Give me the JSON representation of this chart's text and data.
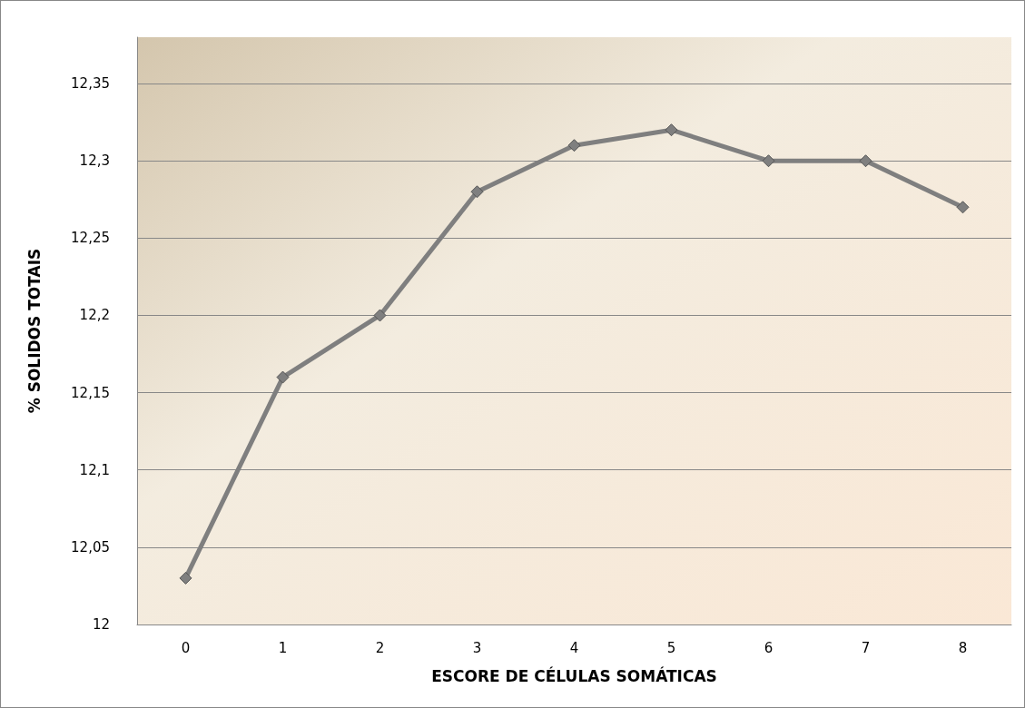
{
  "chart_data": {
    "type": "line",
    "xlabel": "ESCORE DE CÉLULAS SOMÁTICAS",
    "ylabel": "% SOLIDOS TOTAIS",
    "categories": [
      "0",
      "1",
      "2",
      "3",
      "4",
      "5",
      "6",
      "7",
      "8"
    ],
    "series": [
      {
        "color": "#7f7f7f",
        "values": [
          12.03,
          12.16,
          12.2,
          12.28,
          12.31,
          12.32,
          12.3,
          12.3,
          12.27
        ]
      }
    ],
    "ylim": [
      12,
      12.38
    ],
    "yticks": [
      12,
      {
        "value": 12.05,
        "label": "12,05"
      },
      {
        "value": 12.1,
        "label": "12,1"
      },
      {
        "value": 12.15,
        "label": "12,15"
      },
      {
        "value": 12.2,
        "label": "12,2"
      },
      {
        "value": 12.25,
        "label": "12,25"
      },
      {
        "value": 12.3,
        "label": "12,3"
      },
      {
        "value": 12.35,
        "label": "12,35"
      }
    ],
    "grid": "y",
    "marker": "diamond",
    "line_style": "solid"
  }
}
